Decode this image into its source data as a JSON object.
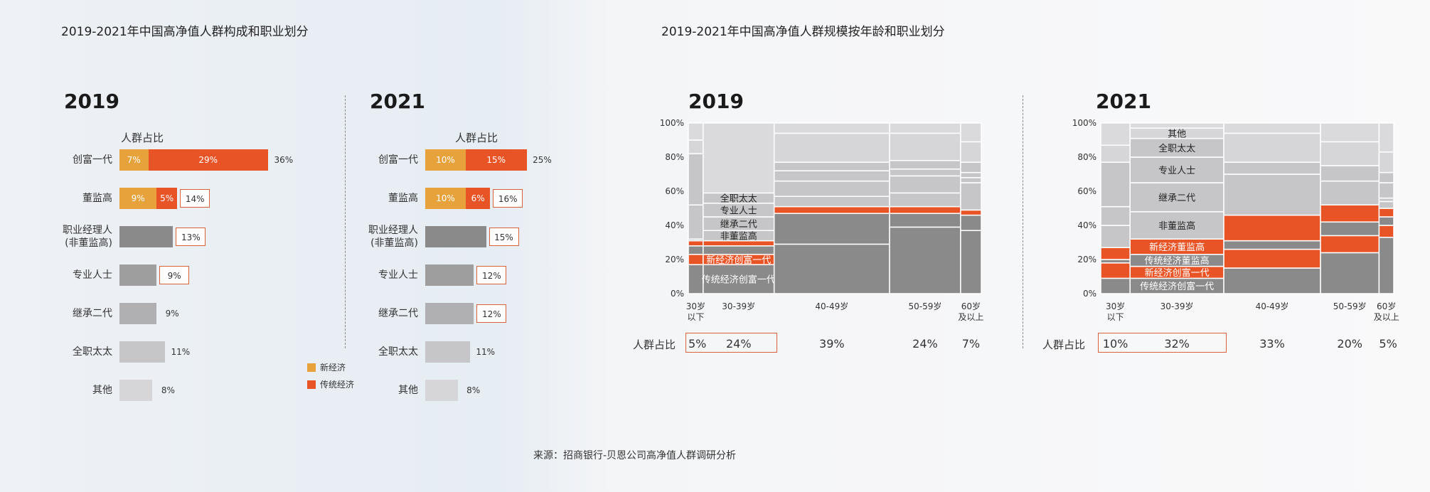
{
  "colors": {
    "new_economy": "#E8A23C",
    "traditional_economy": "#E85426",
    "gray_manager": "#8A8A8A",
    "gray_professional": "#9E9E9F",
    "gray_inheritor": "#B0B0B2",
    "gray_housewife": "#C6C6C8",
    "gray_other": "#D6D6D8",
    "border_accent": "#D9623A"
  },
  "left_panel": {
    "title": "2019-2021年中国高净值人群构成和职业划分",
    "share_label": "人群占比",
    "legend": {
      "new_economy": "新经济",
      "traditional_economy": "传统经济"
    }
  },
  "right_panel": {
    "title": "2019-2021年中国高净值人群规模按年龄和职业划分",
    "share_row_label": "人群占比"
  },
  "source": "来源：招商银行-贝恩公司高净值人群调研分析",
  "chart_data": [
    {
      "type": "bar",
      "title": "2019",
      "subtitle": "人群占比",
      "categories": [
        "创富一代",
        "董监高",
        "职业经理人\n(非董监高)",
        "专业人士",
        "继承二代",
        "全职太太",
        "其他"
      ],
      "series": [
        {
          "name": "新经济",
          "values": [
            7,
            9,
            null,
            null,
            null,
            null,
            null
          ],
          "labels": [
            "7%",
            "9%",
            "",
            "",
            "",
            "",
            ""
          ]
        },
        {
          "name": "传统经济",
          "values": [
            29,
            5,
            null,
            null,
            null,
            null,
            null
          ],
          "labels": [
            "29%",
            "5%",
            "",
            "",
            "",
            "",
            ""
          ]
        }
      ],
      "totals": [
        36,
        14,
        13,
        9,
        9,
        11,
        8
      ],
      "total_labels": [
        "36%",
        "14%",
        "13%",
        "9%",
        "9%",
        "11%",
        "8%"
      ],
      "boxed": [
        false,
        true,
        true,
        true,
        false,
        false,
        false
      ],
      "bar_colors": [
        "",
        "",
        "#8A8A8A",
        "#9E9E9F",
        "#B0B0B2",
        "#C6C6C8",
        "#D6D6D8"
      ]
    },
    {
      "type": "bar",
      "title": "2021",
      "subtitle": "人群占比",
      "categories": [
        "创富一代",
        "董监高",
        "职业经理人\n(非董监高)",
        "专业人士",
        "继承二代",
        "全职太太",
        "其他"
      ],
      "series": [
        {
          "name": "新经济",
          "values": [
            10,
            10,
            null,
            null,
            null,
            null,
            null
          ],
          "labels": [
            "10%",
            "10%",
            "",
            "",
            "",
            "",
            ""
          ]
        },
        {
          "name": "传统经济",
          "values": [
            15,
            6,
            null,
            null,
            null,
            null,
            null
          ],
          "labels": [
            "15%",
            "6%",
            "",
            "",
            "",
            "",
            ""
          ]
        }
      ],
      "totals": [
        25,
        16,
        15,
        12,
        12,
        11,
        8
      ],
      "total_labels": [
        "25%",
        "16%",
        "15%",
        "12%",
        "12%",
        "11%",
        "8%"
      ],
      "boxed": [
        false,
        true,
        true,
        true,
        true,
        false,
        false
      ],
      "bar_colors": [
        "",
        "",
        "#8A8A8A",
        "#9E9E9F",
        "#B0B0B2",
        "#C6C6C8",
        "#D6D6D8"
      ]
    },
    {
      "type": "marimekko",
      "title": "2019",
      "ylim": [
        0,
        100
      ],
      "yticks": [
        "0%",
        "20%",
        "40%",
        "60%",
        "80%",
        "100%"
      ],
      "columns": [
        "30岁\n以下",
        "30-39岁",
        "40-49岁",
        "50-59岁",
        "60岁\n及以上"
      ],
      "widths": [
        5,
        24,
        39,
        24,
        7
      ],
      "width_labels": [
        "5%",
        "24%",
        "39%",
        "24%",
        "7%"
      ],
      "highlight_column": 1,
      "segment_names": [
        "传统经济创富一代",
        "新经济创富一代",
        "传统经济董监高",
        "新经济董监高",
        "非董监高",
        "继承二代",
        "专业人士",
        "全职太太",
        "其他"
      ],
      "segment_colors": [
        "#8A8A8A",
        "#E85426",
        "#8A8A8A",
        "#E85426",
        "#C6C6C8",
        "#C6C6C8",
        "#C6C6C8",
        "#C6C6C8",
        "#D6D6D8"
      ],
      "segment_text_colors": [
        "#fff",
        "#fff",
        "#fff",
        "#fff",
        "#222",
        "#222",
        "#222",
        "#222",
        "#222"
      ],
      "values": [
        [
          17,
          6,
          5,
          3,
          1,
          20,
          0,
          30,
          8,
          10
        ],
        [
          17,
          6,
          5,
          3,
          6,
          8,
          8,
          6,
          0,
          0
        ],
        [
          29,
          0,
          18,
          4,
          6,
          9,
          6,
          5,
          17,
          6
        ],
        [
          39,
          0,
          8,
          4,
          8,
          10,
          4,
          5,
          16,
          6
        ],
        [
          37,
          0,
          9,
          3,
          16,
          3,
          3,
          6,
          12,
          11
        ]
      ]
    },
    {
      "type": "marimekko",
      "title": "2021",
      "ylim": [
        0,
        100
      ],
      "yticks": [
        "0%",
        "20%",
        "40%",
        "60%",
        "80%",
        "100%"
      ],
      "columns": [
        "30岁\n以下",
        "30-39岁",
        "40-49岁",
        "50-59岁",
        "60岁\n及以上"
      ],
      "widths": [
        10,
        32,
        33,
        20,
        5
      ],
      "width_labels": [
        "10%",
        "32%",
        "33%",
        "20%",
        "5%"
      ],
      "highlight_column": -1,
      "highlight_range": [
        0,
        1
      ],
      "segment_names": [
        "传统经济创富一代",
        "新经济创富一代",
        "传统经济董监高",
        "新经济董监高",
        "非董监高",
        "继承二代",
        "专业人士",
        "全职太太",
        "其他"
      ],
      "segment_colors": [
        "#8A8A8A",
        "#E85426",
        "#8A8A8A",
        "#E85426",
        "#C6C6C8",
        "#C6C6C8",
        "#C6C6C8",
        "#C6C6C8",
        "#D6D6D8"
      ],
      "segment_text_colors": [
        "#fff",
        "#fff",
        "#fff",
        "#fff",
        "#222",
        "#222",
        "#222",
        "#222",
        "#222"
      ],
      "values": [
        [
          9,
          9,
          2,
          7,
          0,
          13,
          11,
          26,
          10,
          13
        ],
        [
          9,
          7,
          7,
          9,
          16,
          17,
          15,
          11,
          6,
          3
        ],
        [
          15,
          11,
          5,
          15,
          0,
          0,
          24,
          7,
          17,
          6
        ],
        [
          24,
          10,
          8,
          10,
          0,
          0,
          14,
          9,
          14,
          11
        ],
        [
          33,
          7,
          5,
          5,
          4,
          2,
          9,
          6,
          12,
          17
        ]
      ]
    }
  ]
}
